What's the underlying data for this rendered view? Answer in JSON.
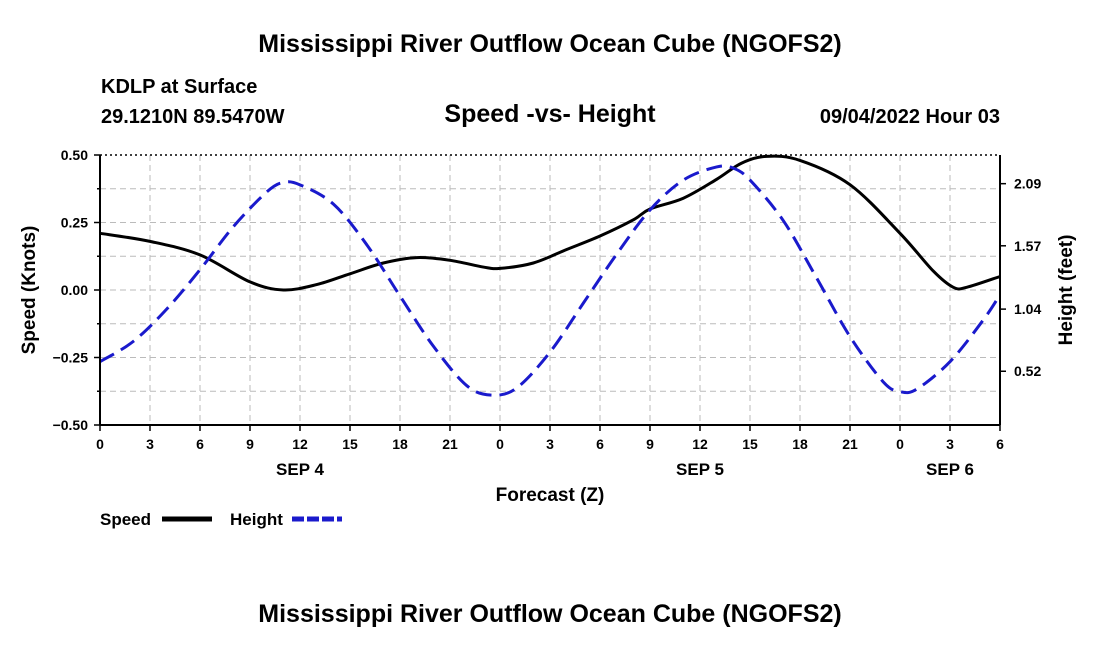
{
  "header": {
    "title": "Mississippi River Outflow Ocean Cube (NGOFS2)",
    "station": "KDLP at Surface",
    "coords": "29.1210N  89.5470W",
    "subtitle": "Speed -vs- Height",
    "datetime": "09/04/2022 Hour 03"
  },
  "footer": {
    "title": "Mississippi River Outflow Ocean Cube (NGOFS2)"
  },
  "chart_data": {
    "type": "line",
    "title": "Speed -vs- Height",
    "xlabel": "Forecast (Z)",
    "ylabel_left": "Speed (Knots)",
    "ylabel_right": "Height (feet)",
    "x_range_hours": [
      0,
      54
    ],
    "x_ticks": [
      {
        "h": 0,
        "label": "0"
      },
      {
        "h": 3,
        "label": "3"
      },
      {
        "h": 6,
        "label": "6"
      },
      {
        "h": 9,
        "label": "9"
      },
      {
        "h": 12,
        "label": "12"
      },
      {
        "h": 15,
        "label": "15"
      },
      {
        "h": 18,
        "label": "18"
      },
      {
        "h": 21,
        "label": "21"
      },
      {
        "h": 24,
        "label": "0"
      },
      {
        "h": 27,
        "label": "3"
      },
      {
        "h": 30,
        "label": "6"
      },
      {
        "h": 33,
        "label": "9"
      },
      {
        "h": 36,
        "label": "12"
      },
      {
        "h": 39,
        "label": "15"
      },
      {
        "h": 42,
        "label": "18"
      },
      {
        "h": 45,
        "label": "21"
      },
      {
        "h": 48,
        "label": "0"
      },
      {
        "h": 51,
        "label": "3"
      },
      {
        "h": 54,
        "label": "6"
      }
    ],
    "date_labels": [
      {
        "h": 12,
        "label": "SEP 4"
      },
      {
        "h": 36,
        "label": "SEP 5"
      },
      {
        "h": 51,
        "label": "SEP 6"
      }
    ],
    "y_left": {
      "range": [
        -0.5,
        0.5
      ],
      "ticks": [
        0.5,
        0.25,
        0.0,
        -0.25,
        -0.5
      ],
      "tick_labels": [
        "0.50",
        "0.25",
        "0.00",
        "−0.25",
        "−0.50"
      ]
    },
    "y_right": {
      "range": [
        0.07,
        2.33
      ],
      "ticks": [
        2.09,
        1.57,
        1.04,
        0.52
      ],
      "tick_labels": [
        "2.09",
        "1.57",
        "1.04",
        "0.52"
      ]
    },
    "legend": [
      {
        "name": "Speed",
        "color": "#000000",
        "style": "solid"
      },
      {
        "name": "Height",
        "color": "#1a1acc",
        "style": "dashed"
      }
    ],
    "series": [
      {
        "name": "Speed",
        "axis": "left",
        "color": "#000000",
        "x": [
          0,
          3,
          6,
          9,
          11,
          13,
          15,
          17,
          19,
          21,
          23,
          24,
          26,
          28,
          30,
          32,
          33,
          35,
          37,
          38.5,
          40,
          42,
          45,
          48,
          50,
          51.2,
          52,
          54
        ],
        "values": [
          0.21,
          0.18,
          0.13,
          0.03,
          0.0,
          0.02,
          0.06,
          0.1,
          0.12,
          0.11,
          0.085,
          0.08,
          0.1,
          0.15,
          0.2,
          0.26,
          0.3,
          0.34,
          0.41,
          0.47,
          0.495,
          0.48,
          0.39,
          0.21,
          0.07,
          0.01,
          0.01,
          0.05
        ]
      },
      {
        "name": "Height",
        "axis": "right",
        "color": "#1a1acc",
        "x": [
          0,
          2,
          4,
          6,
          8,
          10,
          11,
          12,
          14,
          16,
          18,
          20,
          22,
          23.5,
          25,
          27,
          29,
          31,
          33,
          35,
          37,
          38,
          39,
          41,
          43,
          45,
          47,
          48,
          49,
          51,
          53,
          54
        ],
        "values": [
          0.6,
          0.77,
          1.04,
          1.37,
          1.73,
          2.02,
          2.1,
          2.08,
          1.92,
          1.58,
          1.15,
          0.73,
          0.4,
          0.32,
          0.38,
          0.68,
          1.09,
          1.5,
          1.87,
          2.12,
          2.23,
          2.22,
          2.12,
          1.78,
          1.3,
          0.81,
          0.43,
          0.35,
          0.37,
          0.6,
          0.95,
          1.16
        ]
      }
    ]
  }
}
